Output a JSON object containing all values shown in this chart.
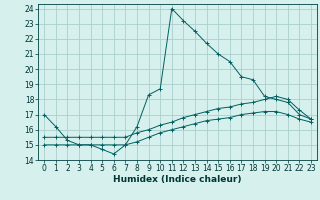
{
  "xlabel": "Humidex (Indice chaleur)",
  "ylabel": "",
  "background_color": "#d6f0ee",
  "grid_color": "#aacfcc",
  "line_color": "#006060",
  "xlim": [
    -0.5,
    23.5
  ],
  "ylim": [
    14,
    24.3
  ],
  "yticks": [
    14,
    15,
    16,
    17,
    18,
    19,
    20,
    21,
    22,
    23,
    24
  ],
  "xticks": [
    0,
    1,
    2,
    3,
    4,
    5,
    6,
    7,
    8,
    9,
    10,
    11,
    12,
    13,
    14,
    15,
    16,
    17,
    18,
    19,
    20,
    21,
    22,
    23
  ],
  "series": [
    {
      "x": [
        0,
        1,
        2,
        3,
        4,
        5,
        6,
        7,
        8,
        9,
        10,
        11,
        12,
        13,
        14,
        15,
        16,
        17,
        18,
        19,
        20,
        21,
        22,
        23
      ],
      "y": [
        17.0,
        16.2,
        15.3,
        15.0,
        15.0,
        14.7,
        14.4,
        15.0,
        16.2,
        18.3,
        18.7,
        24.0,
        23.2,
        22.5,
        21.7,
        21.0,
        20.5,
        19.5,
        19.3,
        18.2,
        18.0,
        17.8,
        17.0,
        16.7
      ]
    },
    {
      "x": [
        0,
        1,
        2,
        3,
        4,
        5,
        6,
        7,
        8,
        9,
        10,
        11,
        12,
        13,
        14,
        15,
        16,
        17,
        18,
        19,
        20,
        21,
        22,
        23
      ],
      "y": [
        15.5,
        15.5,
        15.5,
        15.5,
        15.5,
        15.5,
        15.5,
        15.5,
        15.8,
        16.0,
        16.3,
        16.5,
        16.8,
        17.0,
        17.2,
        17.4,
        17.5,
        17.7,
        17.8,
        18.0,
        18.2,
        18.0,
        17.3,
        16.7
      ]
    },
    {
      "x": [
        0,
        1,
        2,
        3,
        4,
        5,
        6,
        7,
        8,
        9,
        10,
        11,
        12,
        13,
        14,
        15,
        16,
        17,
        18,
        19,
        20,
        21,
        22,
        23
      ],
      "y": [
        15.0,
        15.0,
        15.0,
        15.0,
        15.0,
        15.0,
        15.0,
        15.0,
        15.2,
        15.5,
        15.8,
        16.0,
        16.2,
        16.4,
        16.6,
        16.7,
        16.8,
        17.0,
        17.1,
        17.2,
        17.2,
        17.0,
        16.7,
        16.5
      ]
    }
  ],
  "tick_fontsize": 5.5,
  "xlabel_fontsize": 6.5,
  "xlabel_fontweight": "bold"
}
